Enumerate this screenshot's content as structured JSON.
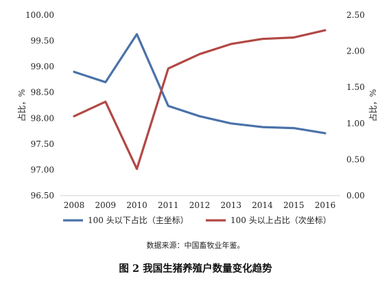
{
  "chart_data": {
    "type": "line",
    "title": "",
    "x": [
      "2008",
      "2009",
      "2010",
      "2011",
      "2012",
      "2013",
      "2014",
      "2015",
      "2016"
    ],
    "axes": {
      "left": {
        "label": "占比，%",
        "ylim": [
          96.5,
          100.0
        ],
        "ticks": [
          "96.50",
          "97.00",
          "97.50",
          "98.00",
          "98.50",
          "99.00",
          "99.50",
          "100.00"
        ]
      },
      "right": {
        "label": "占比，%",
        "ylim": [
          0.0,
          2.5
        ],
        "ticks": [
          "0.00",
          "0.50",
          "1.00",
          "1.50",
          "2.00",
          "2.50"
        ]
      }
    },
    "series": [
      {
        "name": "100 头以下占比（主坐标）",
        "axis": "left",
        "color": "#4a72a9",
        "values": [
          98.9,
          98.7,
          99.63,
          98.24,
          98.04,
          97.9,
          97.83,
          97.81,
          97.71
        ]
      },
      {
        "name": "100 头以上占比（次坐标）",
        "axis": "right",
        "color": "#b24845",
        "values": [
          1.1,
          1.3,
          0.37,
          1.76,
          1.96,
          2.1,
          2.17,
          2.19,
          2.29
        ]
      }
    ],
    "grid": false,
    "legend_position": "bottom"
  },
  "source": "数据来源：中国畜牧业年鉴。",
  "caption": "图 2 我国生猪养殖户数量变化趋势"
}
